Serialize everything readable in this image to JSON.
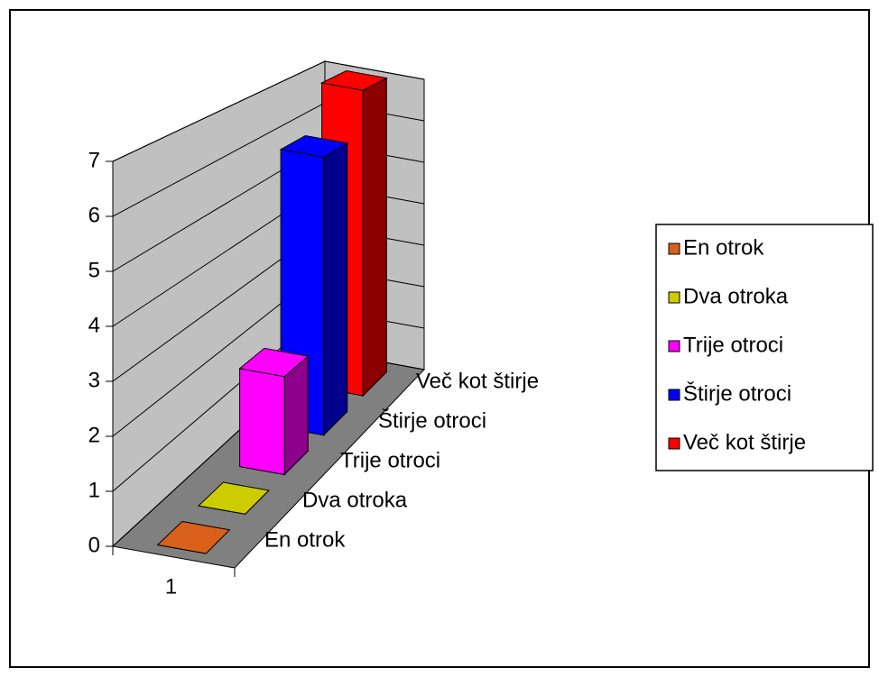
{
  "chart_data": {
    "type": "bar3d",
    "categories": [
      "1"
    ],
    "series": [
      {
        "name": "En otrok",
        "color": "#d9601a",
        "values": [
          0
        ]
      },
      {
        "name": "Dva otroka",
        "color": "#cccc00",
        "values": [
          0
        ]
      },
      {
        "name": "Trije otroci",
        "color": "#ff00ff",
        "values": [
          2
        ]
      },
      {
        "name": "Štirje otroci",
        "color": "#0000ff",
        "values": [
          6
        ]
      },
      {
        "name": "Več kot štirje",
        "color": "#ff0000",
        "values": [
          7
        ]
      }
    ],
    "ylim": [
      0,
      7
    ],
    "yticks": [
      0,
      1,
      2,
      3,
      4,
      5,
      6,
      7
    ],
    "grid": true,
    "legend": "right"
  }
}
